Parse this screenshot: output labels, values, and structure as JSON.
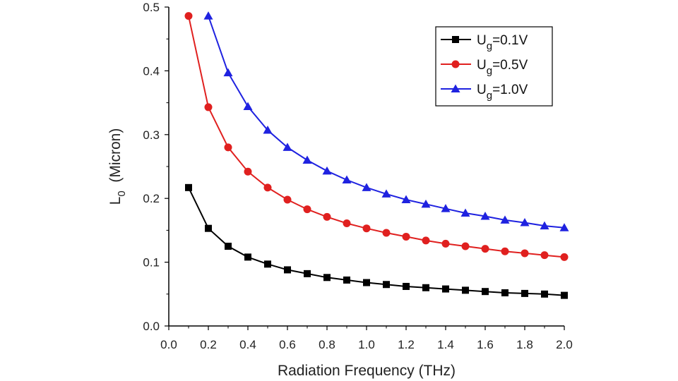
{
  "chart_data": {
    "type": "line",
    "title": "",
    "xlabel": "Radiation Frequency (THz)",
    "ylabel": {
      "main": "L",
      "sub": "0",
      "rest": "  (Micron)"
    },
    "xlim": [
      0.0,
      2.0
    ],
    "ylim": [
      0.0,
      0.5
    ],
    "x_ticks": [
      "0.0",
      "0.2",
      "0.4",
      "0.6",
      "0.8",
      "1.0",
      "1.2",
      "1.4",
      "1.6",
      "1.8",
      "2.0"
    ],
    "y_ticks": [
      "0.0",
      "0.1",
      "0.2",
      "0.3",
      "0.4",
      "0.5"
    ],
    "legend_position": "top-right",
    "grid": false,
    "series": [
      {
        "name": "Ug=0.1V",
        "label_main": "U",
        "label_sub": "g",
        "label_rest": "=0.1V",
        "color": "#000000",
        "marker": "square",
        "x": [
          0.1,
          0.2,
          0.3,
          0.4,
          0.5,
          0.6,
          0.7,
          0.8,
          0.9,
          1.0,
          1.1,
          1.2,
          1.3,
          1.4,
          1.5,
          1.6,
          1.7,
          1.8,
          1.9,
          2.0
        ],
        "y": [
          0.217,
          0.153,
          0.125,
          0.108,
          0.097,
          0.088,
          0.082,
          0.076,
          0.072,
          0.068,
          0.065,
          0.062,
          0.06,
          0.058,
          0.056,
          0.054,
          0.052,
          0.051,
          0.05,
          0.048
        ]
      },
      {
        "name": "Ug=0.5V",
        "label_main": "U",
        "label_sub": "g",
        "label_rest": "=0.5V",
        "color": "#e0201f",
        "marker": "circle",
        "x": [
          0.1,
          0.2,
          0.3,
          0.4,
          0.5,
          0.6,
          0.7,
          0.8,
          0.9,
          1.0,
          1.1,
          1.2,
          1.3,
          1.4,
          1.5,
          1.6,
          1.7,
          1.8,
          1.9,
          2.0
        ],
        "y": [
          0.486,
          0.343,
          0.28,
          0.242,
          0.217,
          0.198,
          0.183,
          0.171,
          0.161,
          0.153,
          0.146,
          0.14,
          0.134,
          0.129,
          0.125,
          0.121,
          0.117,
          0.114,
          0.111,
          0.108
        ]
      },
      {
        "name": "Ug=1.0V",
        "label_main": "U",
        "label_sub": "g",
        "label_rest": "=1.0V",
        "color": "#1f22e0",
        "marker": "triangle",
        "x": [
          0.2,
          0.3,
          0.4,
          0.5,
          0.6,
          0.7,
          0.8,
          0.9,
          1.0,
          1.1,
          1.2,
          1.3,
          1.4,
          1.5,
          1.6,
          1.7,
          1.8,
          1.9,
          2.0
        ],
        "y": [
          0.486,
          0.397,
          0.344,
          0.307,
          0.28,
          0.26,
          0.243,
          0.229,
          0.217,
          0.207,
          0.198,
          0.191,
          0.184,
          0.177,
          0.172,
          0.166,
          0.162,
          0.157,
          0.154
        ]
      }
    ]
  }
}
